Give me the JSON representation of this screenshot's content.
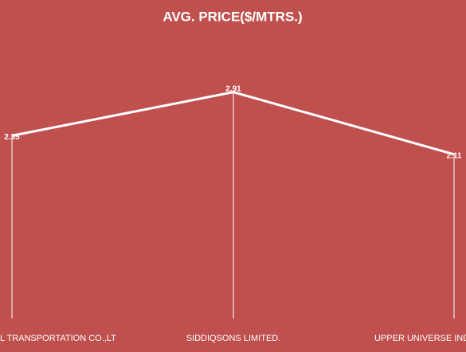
{
  "chart_data": {
    "type": "line",
    "title": "AVG. PRICE($/MTRS.)",
    "categories": [
      "L TRANSPORTATION  CO.,LT",
      "SIDDIQSONS LIMITED.",
      "UPPER  UNIVERSE INDU"
    ],
    "values": [
      2.35,
      2.91,
      2.11
    ],
    "color": "#ffffff",
    "background": "#c0504d",
    "ylim": [
      0,
      3.5
    ],
    "drop_lines": true
  }
}
